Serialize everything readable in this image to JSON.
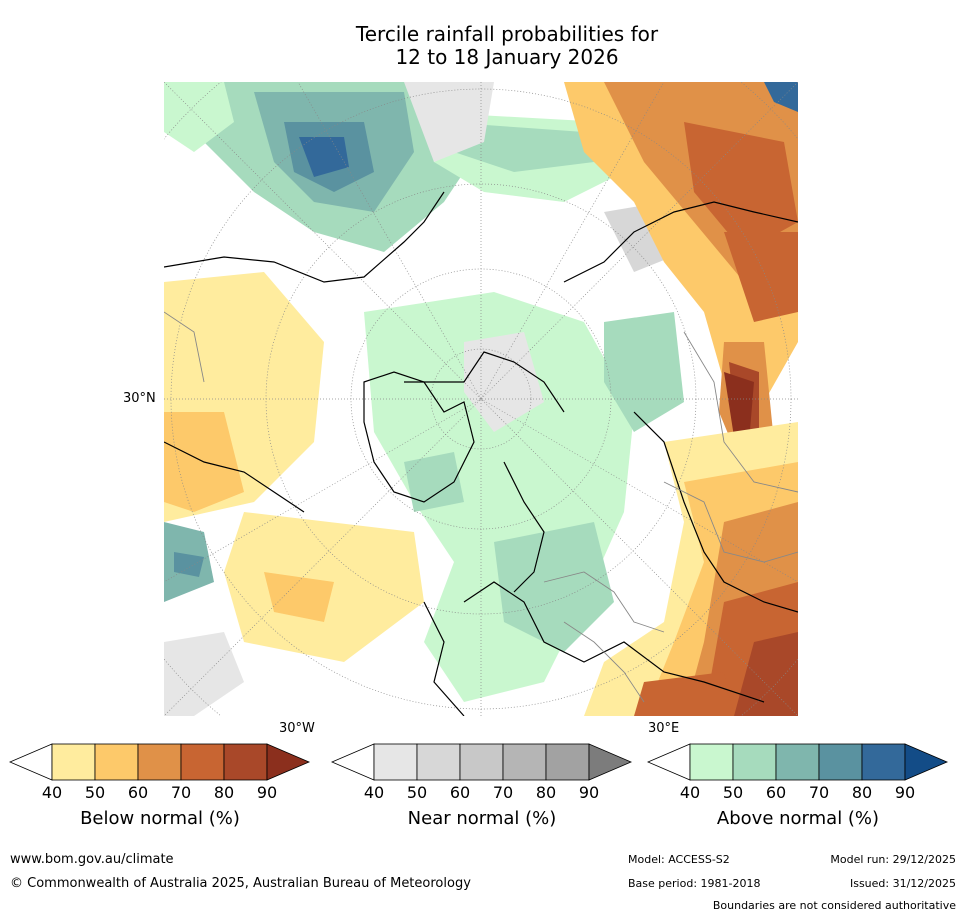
{
  "title_line1": "Tercile rainfall probabilities for",
  "title_line2": "12 to 18 January 2026",
  "map": {
    "lat_label": "30°N",
    "lon_label_left": "30°W",
    "lon_label_right": "30°E"
  },
  "colorbars": [
    {
      "id": "below",
      "label": "Below normal (%)",
      "ticks": [
        "40",
        "50",
        "60",
        "70",
        "80",
        "90"
      ],
      "colors": [
        "#ffffff",
        "#ffec9e",
        "#fdc96a",
        "#e09148",
        "#c86532",
        "#a94829",
        "#8b2f1d"
      ]
    },
    {
      "id": "near",
      "label": "Near normal (%)",
      "ticks": [
        "40",
        "50",
        "60",
        "70",
        "80",
        "90"
      ],
      "colors": [
        "#ffffff",
        "#e6e6e6",
        "#d7d7d7",
        "#c8c8c8",
        "#b5b5b5",
        "#a2a2a2",
        "#7c7c7c"
      ]
    },
    {
      "id": "above",
      "label": "Above normal (%)",
      "ticks": [
        "40",
        "50",
        "60",
        "70",
        "80",
        "90"
      ],
      "colors": [
        "#ffffff",
        "#c9f7cf",
        "#a6dbbd",
        "#7fb6ad",
        "#5a92a0",
        "#33699a",
        "#134c87"
      ]
    }
  ],
  "footer": {
    "website": "www.bom.gov.au/climate",
    "copyright": "© Commonwealth of Australia 2025, Australian Bureau of Meteorology",
    "model": "Model: ACCESS-S2",
    "base_period": "Base period: 1981-2018",
    "model_run": "Model run: 29/12/2025",
    "issued": "Issued: 31/12/2025",
    "disclaimer": "Boundaries are not considered authoritative"
  }
}
